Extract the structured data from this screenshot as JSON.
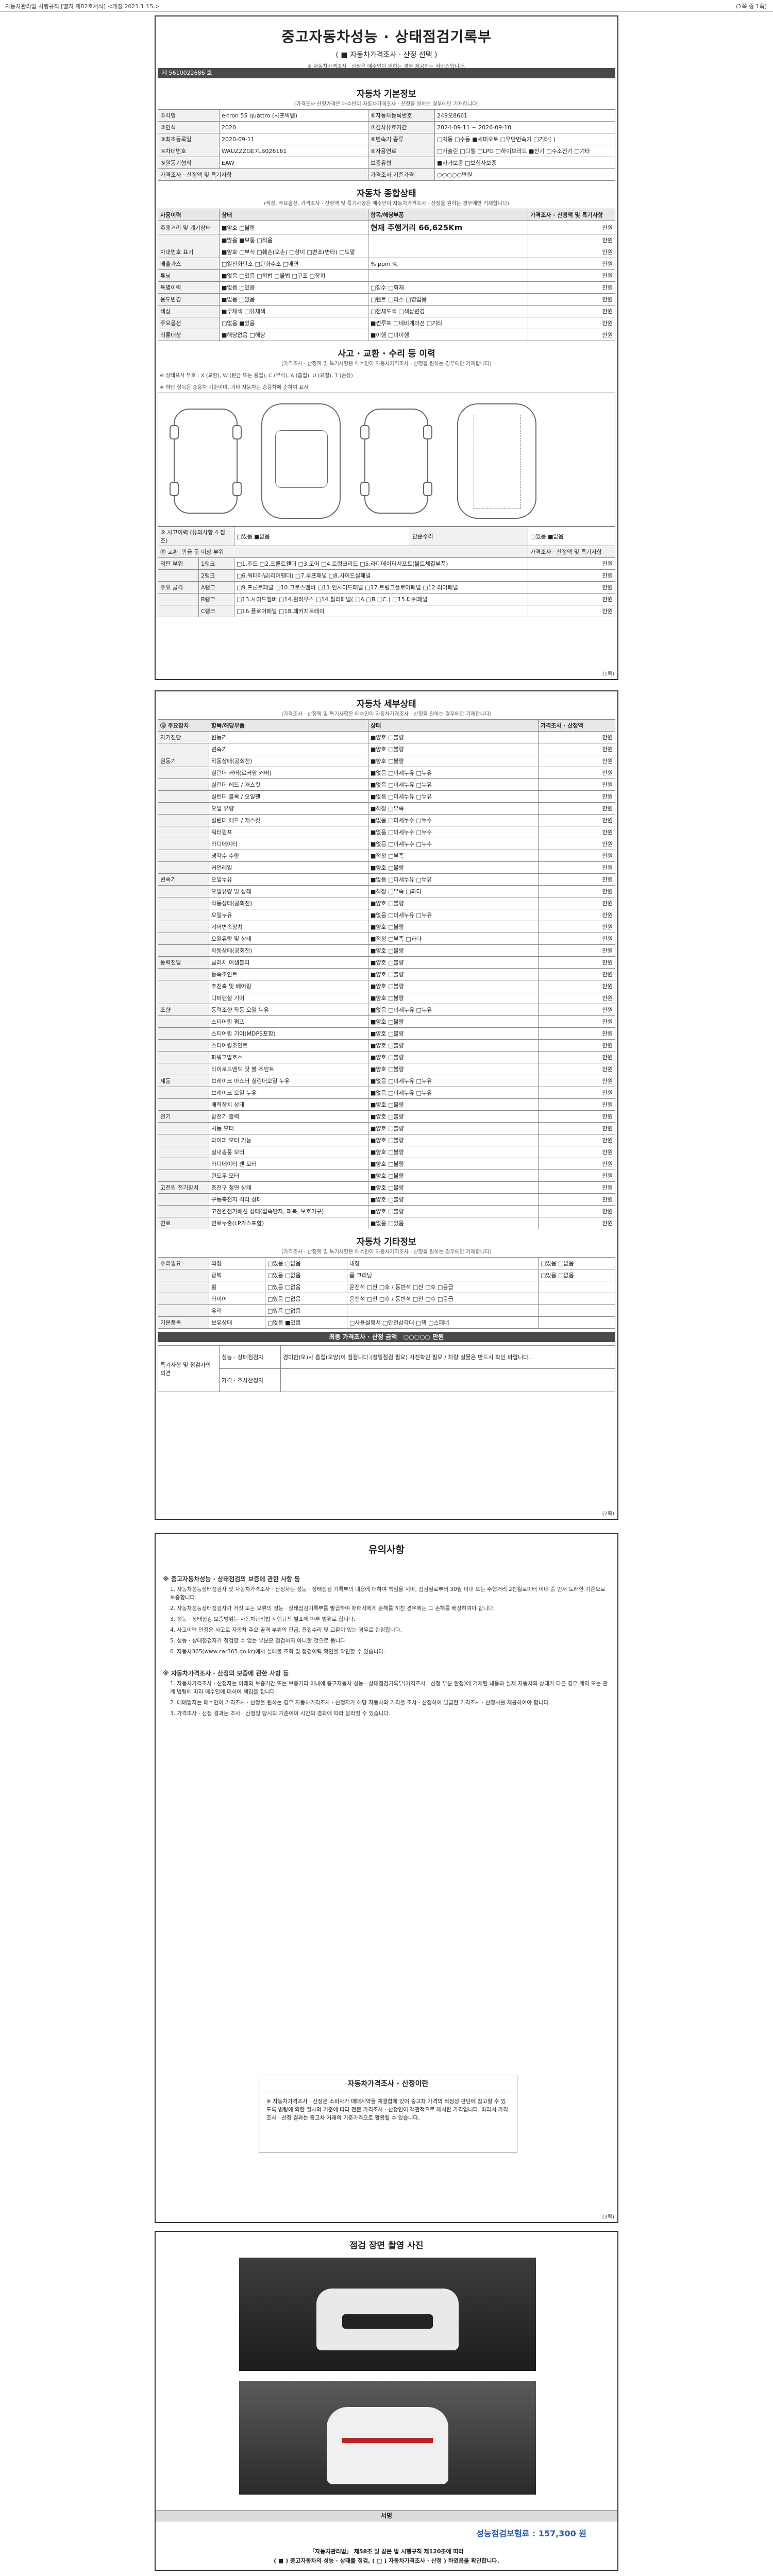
{
  "topbar": {
    "left": "자동차관리법 시행규칙 [별지 제82호서식] <개정 2021.1.15.>",
    "right": "(1쪽 중 1쪽)"
  },
  "doc": {
    "title": "중고자동차성능 · 상태점검기록부",
    "subtitle": "( ■ 자동차가격조사 · 산정 선택 )",
    "subnote": "※ 자동차가격조사 · 산정은 매수인이 원하는 경우 제공하는 서비스입니다.",
    "docno": "제 5610022686 호"
  },
  "basic": {
    "title": "자동차 기본정보",
    "note": "(가격조사·산정가격은 매수인이 자동차가격조사 · 산정을 원하는 경우에만 기재합니다)",
    "rows": [
      {
        "k1": "①차명",
        "v1": "e-tron 55 quattro (사포빅템)",
        "k2": "⑥자동차등록번호",
        "v2": "249오8661"
      },
      {
        "k1": "②연식",
        "v1": "2020",
        "k2": "⑦검사유효기간",
        "v2": "2024-09-11 ~ 2026-09-10"
      },
      {
        "k1": "③최초등록일",
        "v1": "2020-09-11",
        "k2": "⑧변속기 종류",
        "v2": "□자동 □수동 ■세미오토 □무단변속기 □기타( )"
      },
      {
        "k1": "④차대번호",
        "v1": "WAUZZZGE7LB026161",
        "k2": "⑨사용연료",
        "v2": "□가솔린 □디젤 □LPG □하이브리드 ■전기 □수소전기 □기타"
      },
      {
        "k1": "⑤원동기형식",
        "v1": "EAW",
        "k2": "보증유형",
        "v2": "■자가보증 □보험사보증"
      }
    ],
    "price_label": "가격조사 · 산정액 및 특기사항",
    "price_value": "○○○○○만원",
    "row_extra": "가격조사 기준가격"
  },
  "overall": {
    "title": "자동차 종합상태",
    "note": "(색상, 주요옵션, 가격조사 · 산정액 및 특기사항은 매수인이 자동차가격조사 · 산정을 원하는 경우에만 기재합니다)",
    "head": [
      "사용이력",
      "상태",
      "항목/해당부품",
      "가격조사 · 산정액 및 특기사항"
    ],
    "mileage_label": "현재 주행거리",
    "mileage_value": "66,625Km",
    "rows": [
      {
        "k": "주행거리 및 계기상태",
        "s": "■양호 □불량",
        "v": "현재 주행거리 66,625Km",
        "p": "만원"
      },
      {
        "k": "",
        "s": "■많음 ■보통 □적음",
        "v": "",
        "p": "만원"
      },
      {
        "k": "차대번호 표기",
        "s": "■양호 □부식 □훼손(오손) □상이 □변조(변타) □도말",
        "v": "",
        "p": "만원"
      },
      {
        "k": "배출가스",
        "s": "□일산화탄소 □탄화수소 □매연",
        "v": "%   ppm   %",
        "p": "만원"
      },
      {
        "k": "튜닝",
        "s": "■없음 □있음 □적법 □불법 □구조 □장치",
        "v": "",
        "p": "만원"
      },
      {
        "k": "특별이력",
        "s": "■없음 □있음",
        "v": "□침수 □화재",
        "p": "만원"
      },
      {
        "k": "용도변경",
        "s": "■없음 □있음",
        "v": "□렌트 □리스 □영업용",
        "p": "만원"
      },
      {
        "k": "색상",
        "s": "■무채색 □유채색",
        "v": "□전체도색 □색상변경",
        "p": "만원"
      },
      {
        "k": "주요옵션",
        "s": "□없음 ■있음",
        "v": "■썬루프 □네비게이션 □기타",
        "p": "만원"
      },
      {
        "k": "리콜대상",
        "s": "■해당없음 □해당",
        "v": "■이행 □미이행",
        "p": "만원"
      }
    ]
  },
  "accident": {
    "title": "사고 · 교환 · 수리 등 이력",
    "note": "(가격조사 · 산정액 및 특기사항은 매수인이 자동차가격조사 · 산정을 원하는 경우에만 기재합니다)",
    "legend": "※ 상태표시 부호 : X (교환), W (판금 또는 용접), C (부식), A (흠집), U (요철), T (손상)",
    "legend2": "※ 하단 항목은 승용차 기준이며, 기타 자동차는 승용차에 준하여 표시",
    "q_accident": "⑤ 사고이력 (유의사항 4 참조)",
    "q_accident_val": "□있음 ■없음",
    "q_simple": "단순수리",
    "q_simple_val": "□있음 ■없음",
    "exterior_label": "⑪ 교환, 판금 등 이상 부위",
    "price": "가격조사 · 산정액 및 특기사항",
    "groups": [
      {
        "g": "외판 부위",
        "rank": "1랭크",
        "items": "□1.후드 □2.프론트휀더 □3.도어 □4.트렁크리드 □5.라디에이터서포트(볼트체결부품)"
      },
      {
        "g": "",
        "rank": "2랭크",
        "items": "□6.쿼터패널(리어휀더) □7.루프패널 □8.사이드실패널"
      },
      {
        "g": "주요 골격",
        "rank": "A랭크",
        "items": "□9.프론트패널 □10.크로스멤버 □11.인사이드패널 □17.트렁크플로어패널 □12.리어패널"
      },
      {
        "g": "",
        "rank": "B랭크",
        "items": "□13.사이드멤버 □14.휠하우스 □14.필러패널( □A □B □C ) □15.대쉬패널"
      },
      {
        "g": "",
        "rank": "C랭크",
        "items": "□16.플로어패널 □18.패키지트레이"
      }
    ],
    "manwon": "만원"
  },
  "detail": {
    "title": "자동차 세부상태",
    "note": "(가격조사 · 산정액 및 특기사항은 매수인이 자동차가격조사 · 산정을 원하는 경우에만 기재합니다)",
    "head": [
      "⑫ 주요장치",
      "항목/해당부품",
      "상태",
      "가격조사 · 산정액"
    ],
    "rows": [
      {
        "d": "자기진단",
        "i": "원동기",
        "s": "■양호 □불량"
      },
      {
        "d": "",
        "i": "변속기",
        "s": "■양호 □불량"
      },
      {
        "d": "원동기",
        "i": "작동상태(공회전)",
        "s": "■양호 □불량"
      },
      {
        "d": "",
        "i": "실린더 커버(로커암 커버)",
        "s": "■없음 □미세누유 □누유"
      },
      {
        "d": "",
        "i": "실린더 헤드 / 개스킷",
        "s": "■없음 □미세누유 □누유"
      },
      {
        "d": "",
        "i": "실린더 블록 / 오일팬",
        "s": "■없음 □미세누유 □누유"
      },
      {
        "d": "",
        "i": "오일 유량",
        "s": "■적정 □부족"
      },
      {
        "d": "",
        "i": "실린더 헤드 / 개스킷",
        "s": "■없음 □미세누수 □누수"
      },
      {
        "d": "",
        "i": "워터펌프",
        "s": "■없음 □미세누수 □누수"
      },
      {
        "d": "",
        "i": "라디에이터",
        "s": "■없음 □미세누수 □누수"
      },
      {
        "d": "",
        "i": "냉각수 수량",
        "s": "■적정 □부족"
      },
      {
        "d": "",
        "i": "커먼레일",
        "s": "■양호 □불량"
      },
      {
        "d": "변속기",
        "i": "오일누유",
        "s": "■없음 □미세누유 □누유"
      },
      {
        "d": "",
        "i": "오일유량 및 상태",
        "s": "■적정 □부족 □과다"
      },
      {
        "d": "",
        "i": "작동상태(공회전)",
        "s": "■양호 □불량"
      },
      {
        "d": "",
        "i": "오일누유",
        "s": "■없음 □미세누유 □누유"
      },
      {
        "d": "",
        "i": "기어변속장치",
        "s": "■양호 □불량"
      },
      {
        "d": "",
        "i": "오일유량 및 상태",
        "s": "■적정 □부족 □과다"
      },
      {
        "d": "",
        "i": "작동상태(공회전)",
        "s": "■양호 □불량"
      },
      {
        "d": "동력전달",
        "i": "클러치 어셈블리",
        "s": "■양호 □불량"
      },
      {
        "d": "",
        "i": "등속조인트",
        "s": "■양호 □불량"
      },
      {
        "d": "",
        "i": "추진축 및 베어링",
        "s": "■양호 □불량"
      },
      {
        "d": "",
        "i": "디퍼렌셜 기어",
        "s": "■양호 □불량"
      },
      {
        "d": "조향",
        "i": "동력조향 작동 오일 누유",
        "s": "■없음 □미세누유 □누유"
      },
      {
        "d": "",
        "i": "스티어링 펌프",
        "s": "■양호 □불량"
      },
      {
        "d": "",
        "i": "스티어링 기어(MDPS포함)",
        "s": "■양호 □불량"
      },
      {
        "d": "",
        "i": "스티어링조인트",
        "s": "■양호 □불량"
      },
      {
        "d": "",
        "i": "파워고압호스",
        "s": "■양호 □불량"
      },
      {
        "d": "",
        "i": "타이로드엔드 및 볼 조인트",
        "s": "■양호 □불량"
      },
      {
        "d": "제동",
        "i": "브레이크 마스터 실린더오일 누유",
        "s": "■없음 □미세누유 □누유"
      },
      {
        "d": "",
        "i": "브레이크 오일 누유",
        "s": "■없음 □미세누유 □누유"
      },
      {
        "d": "",
        "i": "배력장치 상태",
        "s": "■양호 □불량"
      },
      {
        "d": "전기",
        "i": "발전기 출력",
        "s": "■양호 □불량"
      },
      {
        "d": "",
        "i": "시동 모터",
        "s": "■양호 □불량"
      },
      {
        "d": "",
        "i": "와이퍼 모터 기능",
        "s": "■양호 □불량"
      },
      {
        "d": "",
        "i": "실내송풍 모터",
        "s": "■양호 □불량"
      },
      {
        "d": "",
        "i": "라디에이터 팬 모터",
        "s": "■양호 □불량"
      },
      {
        "d": "",
        "i": "윈도우 모터",
        "s": "■양호 □불량"
      },
      {
        "d": "고전원 전기장치",
        "i": "충전구 절연 상태",
        "s": "■양호 □불량"
      },
      {
        "d": "",
        "i": "구동축전지 격리 상태",
        "s": "■양호 □불량"
      },
      {
        "d": "",
        "i": "고전원전기배선 상태(접속단자, 피복, 보호기구)",
        "s": "■양호 □불량"
      },
      {
        "d": "연료",
        "i": "연료누출(LP가스포함)",
        "s": "■없음 □있음"
      }
    ],
    "manwon": "만원"
  },
  "other": {
    "title": "자동차 기타정보",
    "note": "(가격조사 · 산정액 및 특기사항은 매수인이 자동차가격조사 · 산정을 원하는 경우에만 기재합니다)",
    "rows": [
      {
        "k": "수리필요",
        "a": "외장",
        "as": "□있음 □없음",
        "b": "내장",
        "bs": "□있음 □없음"
      },
      {
        "k": "",
        "a": "광택",
        "as": "□있음 □없음",
        "b": "룸 크리닝",
        "bs": "□있음 □없음"
      },
      {
        "k": "",
        "a": "휠",
        "as": "□있음 □없음",
        "b": "운전석 □전 □후 / 동반석 □전 □후 □응급",
        "bs": ""
      },
      {
        "k": "",
        "a": "타이어",
        "as": "□있음 □없음",
        "b": "운전석 □전 □후 / 동반석 □전 □후 □응급",
        "bs": ""
      },
      {
        "k": "",
        "a": "유리",
        "as": "□있음 □없음",
        "b": "",
        "bs": ""
      },
      {
        "k": "기본품목",
        "a": "보유상태",
        "as": "□없음 ■있음",
        "b": "□사용설명서 □안전삼각대 □잭 □스패너",
        "bs": ""
      }
    ],
    "summary_label": "최종 가격조사 · 산정 금액",
    "summary_value": "○○○○○ 만원",
    "special_label": "특기사항 및 점검자의 의견",
    "special_a": "성능 · 상태점검자",
    "special_a_text": "경미한(모)사 흠집(모양)이 점점니다.(정밀점검 필요) 사진확인 필요 / 차량 실물은 반드시 확인 바랍니다.",
    "special_b": "가격 · 조사산정자"
  },
  "notices": {
    "title": "유의사항",
    "h1": "※ 중고자동차성능 · 상태점검의 보증에 관한 사항 등",
    "items1": [
      "1. 자동차성능상태점검자 및 자동차가격조사 · 산정자는 성능 · 상태점검 기록부의 내용에 대하여 책임을 지며, 점검일로부터 30일 이내 또는 주행거리 2천킬로미터 이내 중 먼저 도래한 기준으로 보증합니다.",
      "2. 자동차성능상태점검자가 거짓 또는 오류의 성능 · 상태점검기록부를 발급하여 매매자에게 손해를 끼친 경우에는 그 손해를 배상하여야 합니다.",
      "3. 성능 · 상태점검 보증범위는 자동차관리법 시행규칙 별표에 따른 범위로 합니다.",
      "4. 사고이력 인정은 사고로 자동차 주요 골격 부위의 판금, 용접수리 및 교환이 있는 경우로 한정합니다.",
      "5. 성능 · 상태점검자가 점검할 수 없는 부분은 점검하지 아니한 것으로 봅니다.",
      "6. 자동차365(www.car365.go.kr)에서 실매물 조회 및 점검이력 확인을 확인할 수 있습니다."
    ],
    "h2": "※ 자동차가격조사 · 산정의 보증에 관한 사항 등",
    "items2": [
      "1. 자동차가격조사 · 산정자는 아래의 보증기간 또는 보증거리 이내에 중고자동차 성능 · 상태점검기록부(가격조사 · 산정 부분 한정)에 기재된 내용과 실제 자동차의 상태가 다른 경우 계약 또는 관계 법령에 따라 매수인에 대하여 책임을 집니다.",
      "2. 매매업자는 매수인이 가격조사 · 산정을 원하는 경우 자동차가격조사 · 산정자가 해당 자동차의 가격을 조사 · 산정하여 발급한 가격조사 · 산정서를 제공하여야 합니다.",
      "3. 가격조사 · 산정 결과는 조사 · 산정일 당시의 기준이며 시간의 경과에 따라 달라질 수 있습니다."
    ],
    "box_title": "자동차가격조사 · 산정이란",
    "box_text": "※ 자동차가격조사 · 산정은 소비자가 매매계약을 체결함에 있어 중고차 가격의 적정성 판단에 참고할 수 있도록 법령에 의한 절차와 기준에 따라 전문 가격조사 · 산정인이 객관적으로 제시한 가격입니다. 따라서 가격조사 · 산정 결과는 중고차 거래의 기준가격으로 활용될 수 있습니다."
  },
  "photos": {
    "title": "점검 장면 촬영 사진"
  },
  "sign": {
    "title": "서명",
    "warranty": "성능점검보험료 : 157,300 원",
    "law": "「자동차관리법」 제58조 및 같은 법 시행규칙 제120조에 따라",
    "law2": "( ■ ) 중고자동차의 성능 · 상태를 점검, ( □ ) 자동차가격조사 · 산정 ) 하였음을 확인합니다."
  },
  "pagefoot": {
    "p1": "(1쪽)",
    "p2": "(2쪽)",
    "p3": "(3쪽)"
  }
}
